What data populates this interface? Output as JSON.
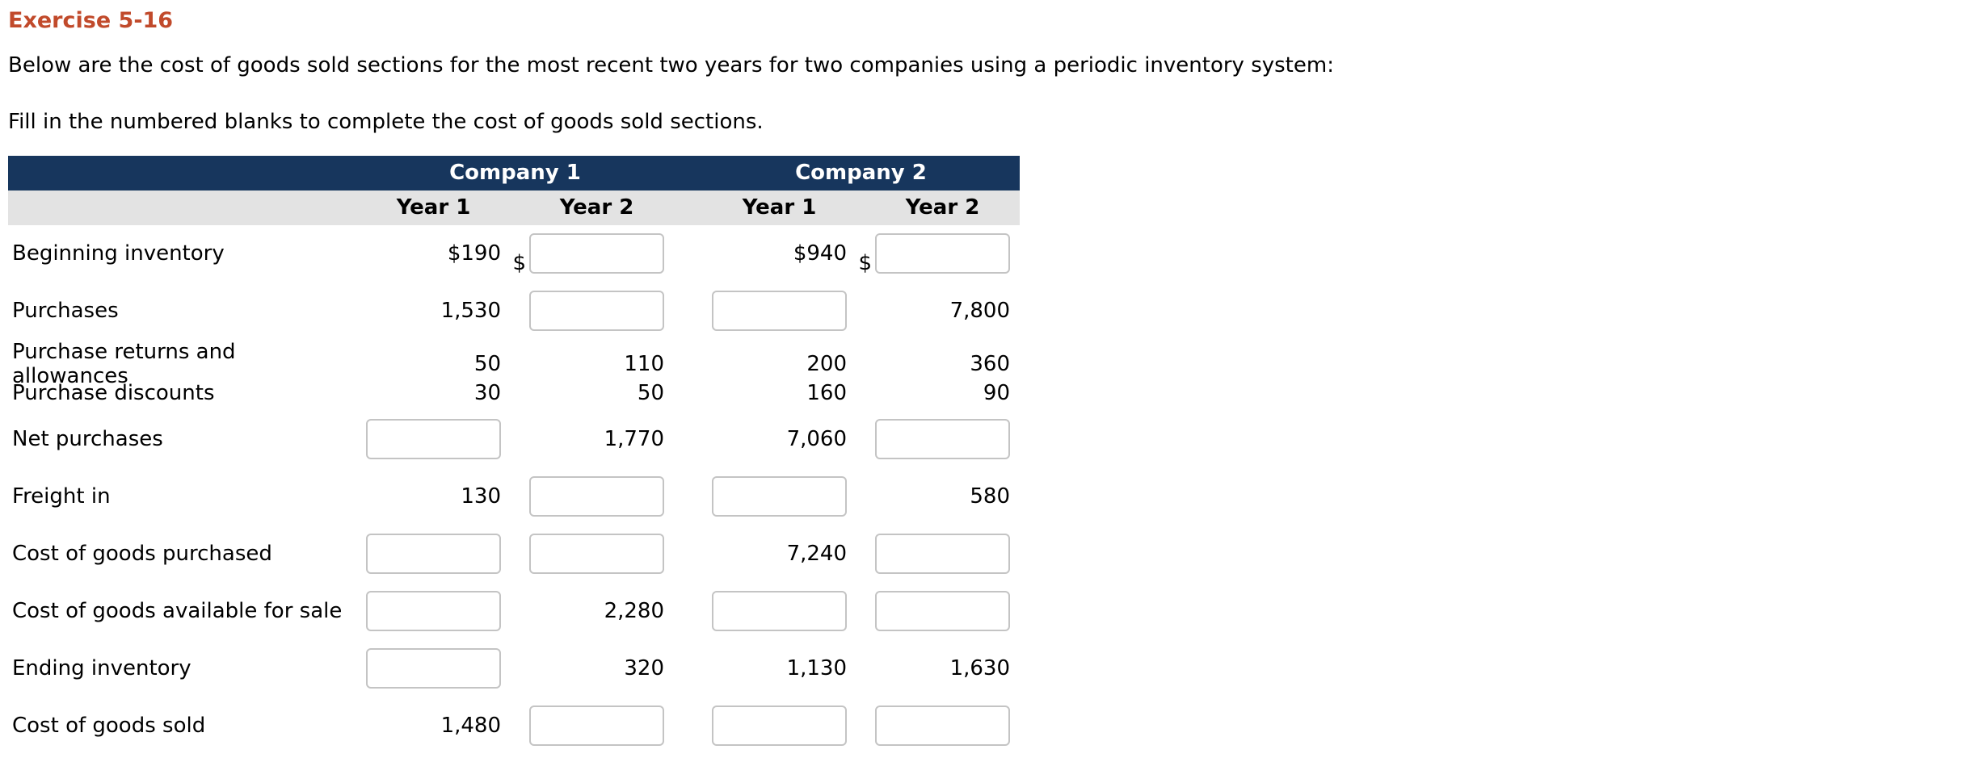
{
  "page": {
    "title": "Exercise 5-16",
    "intro": "Below are the cost of goods sold sections for the most recent two years for two companies using a periodic inventory system:",
    "instruction": "Fill in the numbered blanks to complete the cost of goods sold sections."
  },
  "colors": {
    "title_text": "#C14A2B",
    "table_header_bg": "#17365D",
    "table_header_text": "#FFFFFF",
    "year_row_bg": "#E3E3E3",
    "input_border": "#C4C4C4"
  },
  "table": {
    "company_headers": [
      "Company 1",
      "Company 2"
    ],
    "year_headers": [
      "Year 1",
      "Year 2",
      "Year 1",
      "Year 2"
    ],
    "rows": [
      {
        "label": "Beginning inventory",
        "cells": [
          {
            "type": "text",
            "value": "$190"
          },
          {
            "type": "input",
            "prefix": "$",
            "value": ""
          },
          {
            "type": "text",
            "value": "$940"
          },
          {
            "type": "input",
            "prefix": "$",
            "value": ""
          }
        ]
      },
      {
        "label": "Purchases",
        "cells": [
          {
            "type": "text",
            "value": "1,530"
          },
          {
            "type": "input",
            "value": ""
          },
          {
            "type": "input",
            "value": ""
          },
          {
            "type": "text",
            "value": "7,800"
          }
        ]
      },
      {
        "label": "Purchase returns and allowances",
        "cells": [
          {
            "type": "text",
            "value": "50"
          },
          {
            "type": "text",
            "value": "110"
          },
          {
            "type": "text",
            "value": "200"
          },
          {
            "type": "text",
            "value": "360"
          }
        ]
      },
      {
        "label": "Purchase discounts",
        "cells": [
          {
            "type": "text",
            "value": "30"
          },
          {
            "type": "text",
            "value": "50"
          },
          {
            "type": "text",
            "value": "160"
          },
          {
            "type": "text",
            "value": "90"
          }
        ]
      },
      {
        "label": "Net purchases",
        "cells": [
          {
            "type": "input",
            "value": ""
          },
          {
            "type": "text",
            "value": "1,770"
          },
          {
            "type": "text",
            "value": "7,060"
          },
          {
            "type": "input",
            "value": ""
          }
        ]
      },
      {
        "label": "Freight in",
        "cells": [
          {
            "type": "text",
            "value": "130"
          },
          {
            "type": "input",
            "value": ""
          },
          {
            "type": "input",
            "value": ""
          },
          {
            "type": "text",
            "value": "580"
          }
        ]
      },
      {
        "label": "Cost of goods purchased",
        "cells": [
          {
            "type": "input",
            "value": ""
          },
          {
            "type": "input",
            "value": ""
          },
          {
            "type": "text",
            "value": "7,240"
          },
          {
            "type": "input",
            "value": ""
          }
        ]
      },
      {
        "label": "Cost of goods available for sale",
        "cells": [
          {
            "type": "input",
            "value": ""
          },
          {
            "type": "text",
            "value": "2,280"
          },
          {
            "type": "input",
            "value": ""
          },
          {
            "type": "input",
            "value": ""
          }
        ]
      },
      {
        "label": "Ending inventory",
        "cells": [
          {
            "type": "input",
            "value": ""
          },
          {
            "type": "text",
            "value": "320"
          },
          {
            "type": "text",
            "value": "1,130"
          },
          {
            "type": "text",
            "value": "1,630"
          }
        ]
      },
      {
        "label": "Cost of goods sold",
        "cells": [
          {
            "type": "text",
            "value": "1,480"
          },
          {
            "type": "input",
            "value": ""
          },
          {
            "type": "input",
            "value": ""
          },
          {
            "type": "input",
            "value": ""
          }
        ]
      }
    ]
  }
}
